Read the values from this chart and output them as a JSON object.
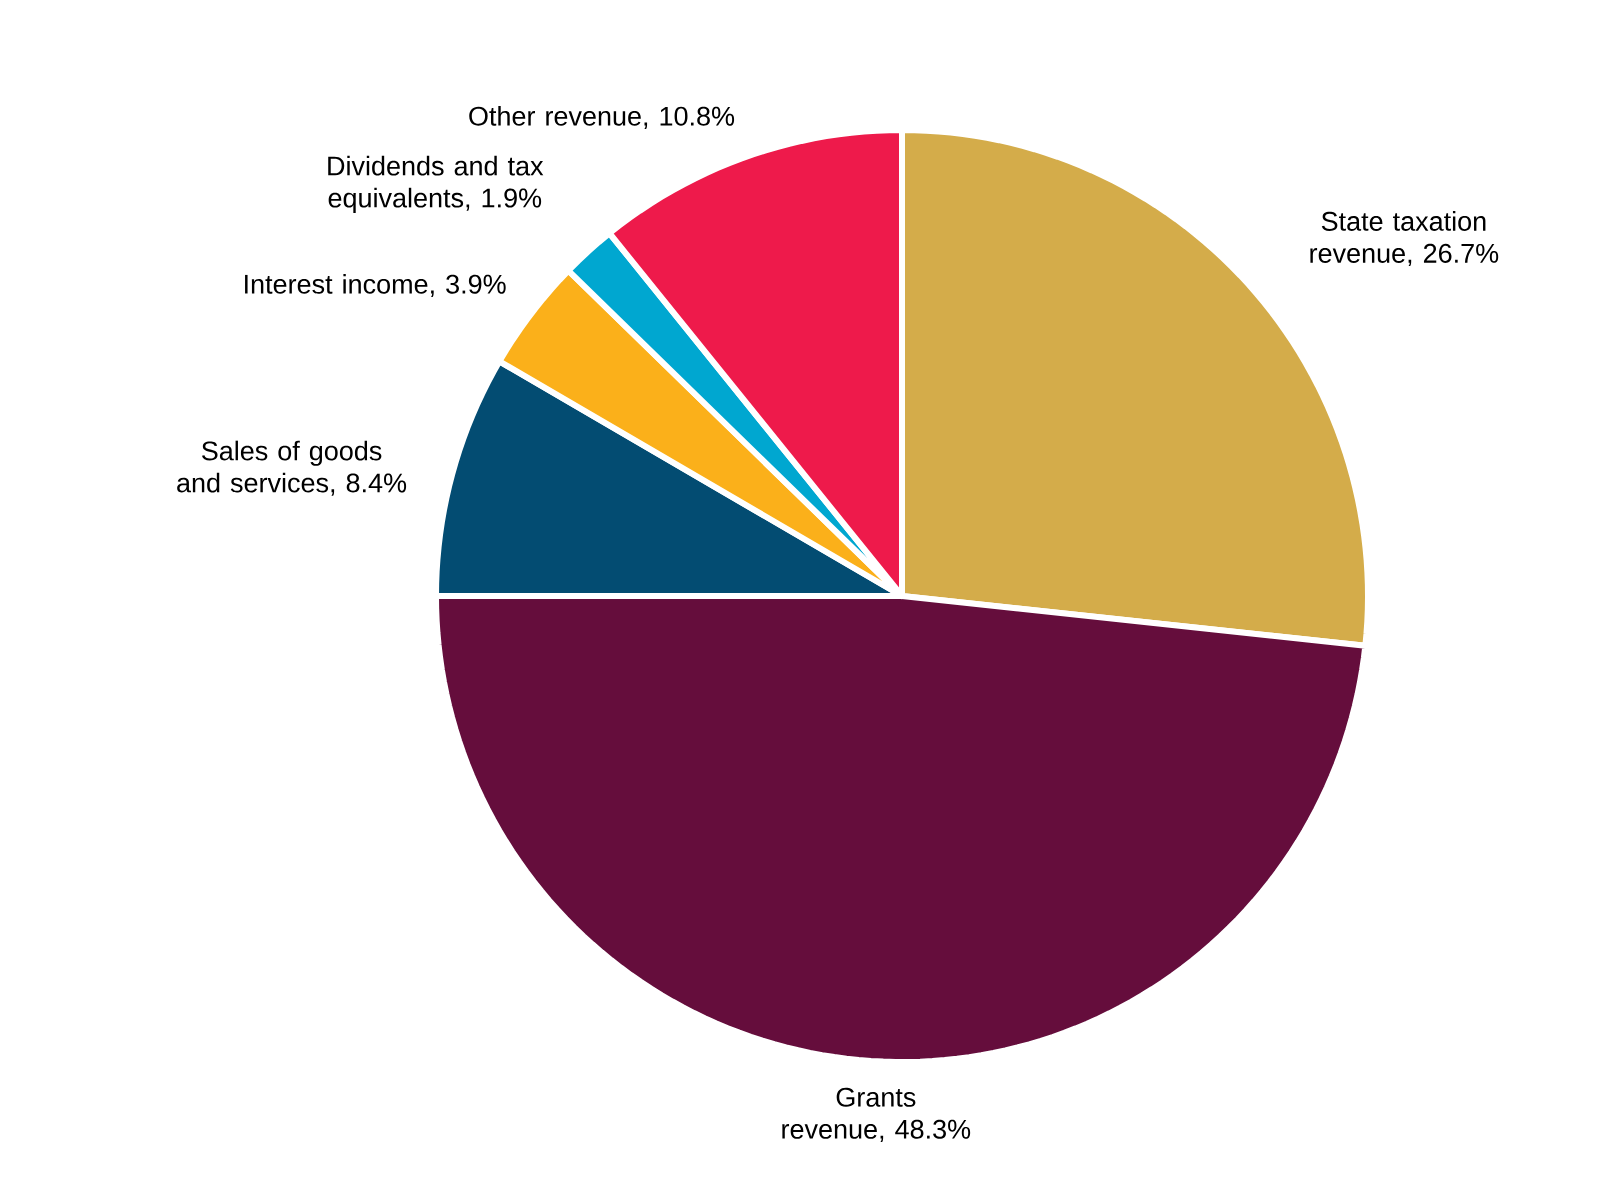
{
  "chart_data": {
    "type": "pie",
    "categories": [
      "State taxation revenue, 26.7%",
      "Grants revenue, 48.3%",
      "Sales of goods and services, 8.4%",
      "Interest income, 3.9%",
      "Dividends and tax equivalents, 1.9%",
      "Other revenue, 10.8%"
    ],
    "values": [
      26.7,
      48.3,
      8.4,
      3.9,
      1.9,
      10.8
    ],
    "colors": [
      "#d4ac4a",
      "#650d3c",
      "#034c72",
      "#fbb01a",
      "#00a7d0",
      "#ee1a4b"
    ]
  }
}
